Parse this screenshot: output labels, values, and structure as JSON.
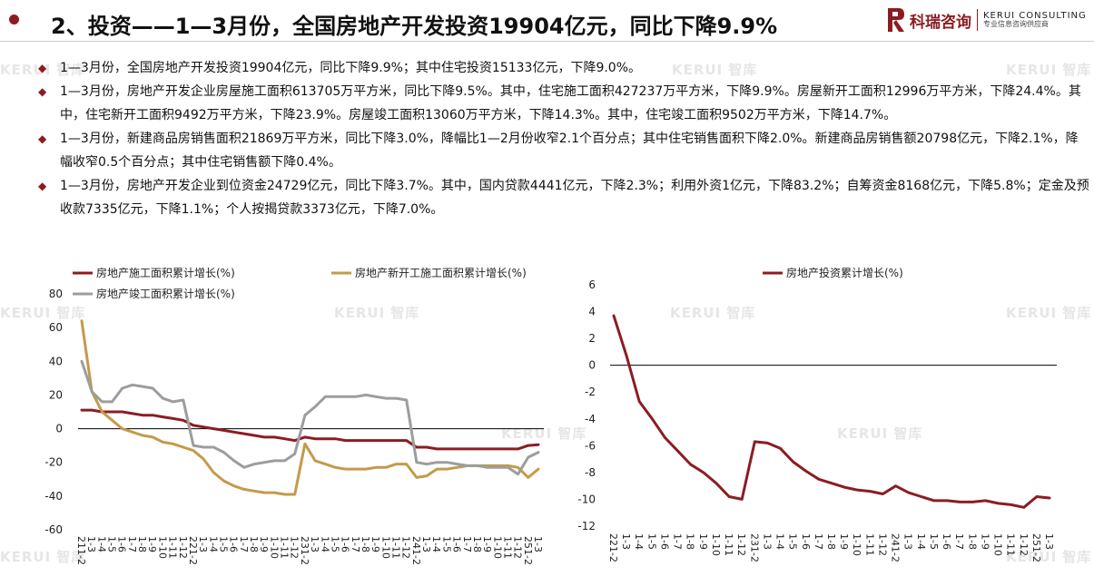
{
  "header": {
    "title": "2、投资——1—3月份，全国房地产开发投资19904亿元，同比下降9.9%",
    "logo_cn": "科瑞咨询",
    "logo_en": "KERUI CONSULTING",
    "logo_sub": "专业信息咨询供应商"
  },
  "bullets": [
    "1—3月份，全国房地产开发投资19904亿元，同比下降9.9%；其中住宅投资15133亿元，下降9.0%。",
    "1—3月份，房地产开发企业房屋施工面积613705万平方米，同比下降9.5%。其中，住宅施工面积427237万平方米，下降9.9%。房屋新开工面积12996万平方米，下降24.4%。其中，住宅新开工面积9492万平方米，下降23.9%。房屋竣工面积13060万平方米，下降14.3%。其中，住宅竣工面积9502万平方米，下降14.7%。",
    "1—3月份，新建商品房销售面积21869万平方米，同比下降3.0%，降幅比1—2月份收窄2.1个百分点；其中住宅销售面积下降2.0%。新建商品房销售额20798亿元，下降2.1%，降幅收窄0.5个百分点；其中住宅销售额下降0.4%。",
    "1—3月份，房地产开发企业到位资金24729亿元，同比下降3.7%。其中，国内贷款4441亿元，下降2.3%；利用外资1亿元，下降83.2%；自筹资金8168亿元，下降5.8%；定金及预收款7335亿元，下降1.1%；个人按揭贷款3373亿元，下降7.0%。"
  ],
  "watermark": "KERUI 智库",
  "colors": {
    "accent": "#8b1d22",
    "gold": "#c49a4a",
    "gray": "#9d9d9d"
  },
  "chart_data": [
    {
      "type": "line",
      "title": "",
      "xlabel": "",
      "ylabel": "",
      "ylim": [
        -60,
        80
      ],
      "yticks": [
        80,
        60,
        40,
        20,
        0,
        -20,
        -40,
        -60
      ],
      "grid": false,
      "legend_position": "top",
      "categories": [
        "2021-2",
        "1-3",
        "1-4",
        "1-5",
        "1-6",
        "1-7",
        "1-8",
        "1-9",
        "1-10",
        "1-11",
        "1-12",
        "2022-2",
        "1-3",
        "1-4",
        "1-5",
        "1-6",
        "1-7",
        "1-8",
        "1-9",
        "1-10",
        "1-11",
        "1-12",
        "2023-2",
        "1-3",
        "1-4",
        "1-5",
        "1-6",
        "1-7",
        "1-8",
        "1-9",
        "1-10",
        "1-11",
        "1-12",
        "2024-2",
        "1-3",
        "1-4",
        "1-5",
        "1-6",
        "1-7",
        "1-8",
        "1-9",
        "1-10",
        "1-11",
        "1-12",
        "2025-2",
        "1-3"
      ],
      "tick_labels": [
        "211-2",
        "1-3",
        "1-4",
        "1-5",
        "1-6",
        "1-7",
        "1-8",
        "1-9",
        "1-10",
        "1-11",
        "1-12",
        "221-2",
        "1-3",
        "1-4",
        "1-5",
        "1-6",
        "1-7",
        "1-8",
        "1-9",
        "1-10",
        "1-11",
        "1-12",
        "231-2",
        "1-3",
        "1-4",
        "1-5",
        "1-6",
        "1-7",
        "1-8",
        "1-9",
        "1-10",
        "1-11",
        "1-12",
        "241-2",
        "1-3",
        "1-4",
        "1-5",
        "1-6",
        "1-7",
        "1-8",
        "1-9",
        "1-10",
        "1-11",
        "1-12",
        "251-2",
        "1-3"
      ],
      "series": [
        {
          "name": "房地产施工面积累计增长(%)",
          "color": "#8b1d22",
          "values": [
            11,
            11,
            10,
            10,
            10,
            9,
            8,
            8,
            7,
            6,
            5,
            2,
            1,
            0,
            -1,
            -2,
            -3,
            -4,
            -5,
            -5,
            -6,
            -7,
            -5,
            -6,
            -6,
            -6,
            -7,
            -7,
            -7,
            -7,
            -7,
            -7,
            -7,
            -11,
            -11,
            -12,
            -12,
            -12,
            -12,
            -12,
            -12,
            -12,
            -12,
            -12,
            -10,
            -9.5
          ]
        },
        {
          "name": "房地产新开工施工面积累计增长(%)",
          "color": "#c49a4a",
          "values": [
            64,
            22,
            10,
            5,
            0,
            -2,
            -4,
            -5,
            -8,
            -9,
            -11,
            -13,
            -18,
            -26,
            -31,
            -34,
            -36,
            -37,
            -38,
            -38,
            -39,
            -39,
            -9,
            -19,
            -21,
            -23,
            -24,
            -24,
            -24,
            -23,
            -23,
            -21,
            -21,
            -29,
            -28,
            -24,
            -24,
            -23,
            -22,
            -22,
            -22,
            -22,
            -22,
            -23,
            -29,
            -24
          ]
        },
        {
          "name": "房地产竣工面积累计增长(%)",
          "color": "#9d9d9d",
          "values": [
            40,
            22,
            16,
            16,
            24,
            26,
            25,
            24,
            18,
            16,
            17,
            -10,
            -11,
            -11,
            -14,
            -19,
            -23,
            -21,
            -20,
            -19,
            -19,
            -15,
            8,
            13,
            19,
            19,
            19,
            19,
            20,
            19,
            18,
            18,
            17,
            -20,
            -21,
            -20,
            -20,
            -21,
            -22,
            -22,
            -23,
            -23,
            -23,
            -27,
            -17,
            -14
          ]
        }
      ]
    },
    {
      "type": "line",
      "title": "",
      "xlabel": "",
      "ylabel": "",
      "ylim": [
        -12,
        6
      ],
      "yticks": [
        6,
        4,
        2,
        0,
        -2,
        -4,
        -6,
        -8,
        -10,
        -12
      ],
      "grid": false,
      "legend_position": "top",
      "categories": [
        "2022-2",
        "1-3",
        "1-4",
        "1-5",
        "1-6",
        "1-7",
        "1-8",
        "1-9",
        "1-10",
        "1-11",
        "1-12",
        "2023-2",
        "1-3",
        "1-4",
        "1-5",
        "1-6",
        "1-7",
        "1-8",
        "1-9",
        "1-10",
        "1-11",
        "1-12",
        "2024-2",
        "1-3",
        "1-4",
        "1-5",
        "1-6",
        "1-7",
        "1-8",
        "1-9",
        "1-10",
        "1-11",
        "1-12",
        "2025-2",
        "1-3"
      ],
      "tick_labels": [
        "221-2",
        "1-3",
        "1-4",
        "1-5",
        "1-6",
        "1-7",
        "1-8",
        "1-9",
        "1-10",
        "1-11",
        "1-12",
        "231-2",
        "1-3",
        "1-4",
        "1-5",
        "1-6",
        "1-7",
        "1-8",
        "1-9",
        "1-10",
        "1-11",
        "1-12",
        "241-2",
        "1-3",
        "1-4",
        "1-5",
        "1-6",
        "1-7",
        "1-8",
        "1-9",
        "1-10",
        "1-11",
        "1-12",
        "251-2",
        "1-3"
      ],
      "series": [
        {
          "name": "房地产投资累计增长(%)",
          "color": "#8b1d22",
          "values": [
            3.7,
            0.7,
            -2.7,
            -4.0,
            -5.4,
            -6.4,
            -7.4,
            -8.0,
            -8.8,
            -9.8,
            -10.0,
            -5.7,
            -5.8,
            -6.2,
            -7.2,
            -7.9,
            -8.5,
            -8.8,
            -9.1,
            -9.3,
            -9.4,
            -9.6,
            -9.0,
            -9.5,
            -9.8,
            -10.1,
            -10.1,
            -10.2,
            -10.2,
            -10.1,
            -10.3,
            -10.4,
            -10.6,
            -9.8,
            -9.9
          ]
        }
      ]
    }
  ]
}
